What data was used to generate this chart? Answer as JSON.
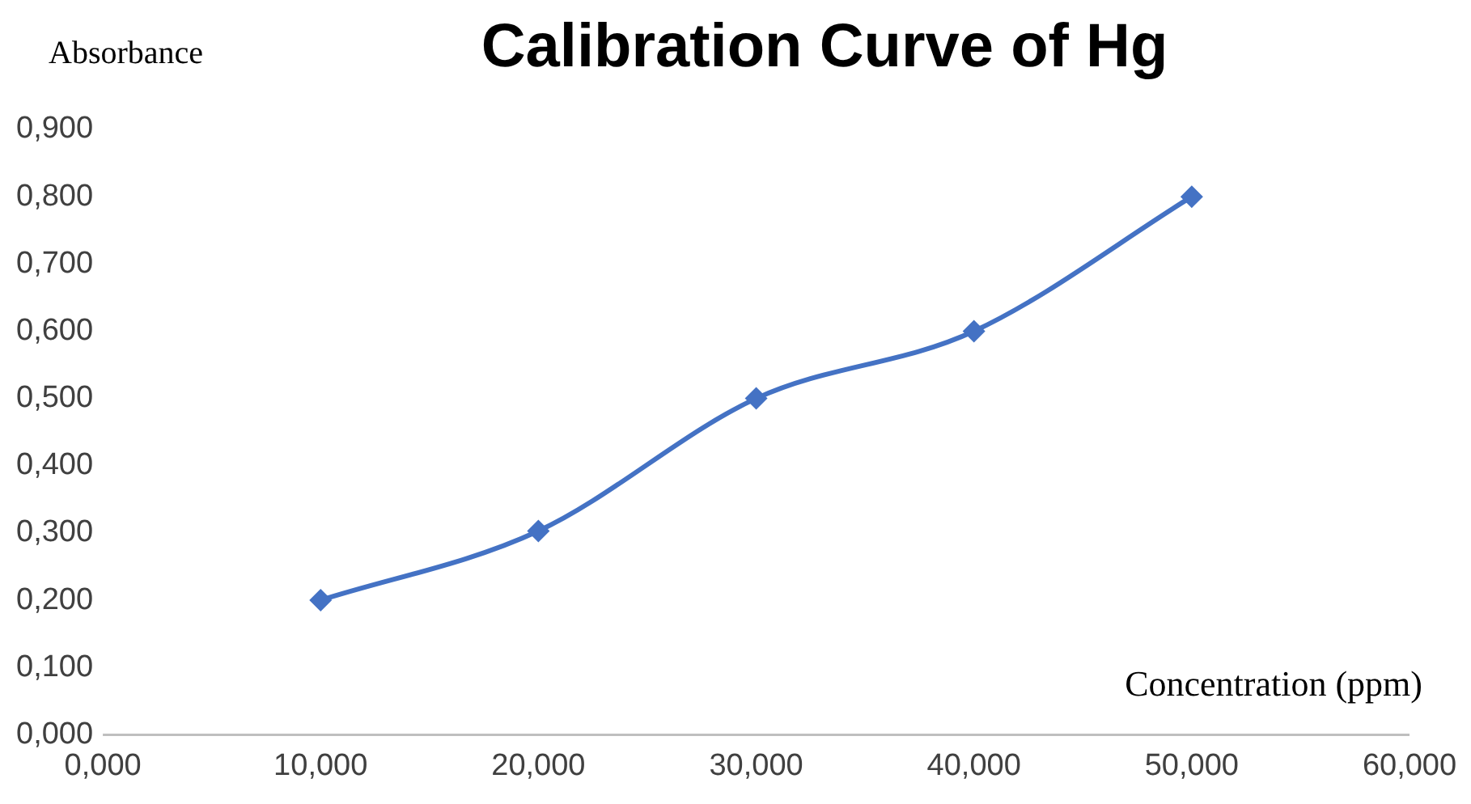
{
  "chart_data": {
    "type": "line",
    "title": "Calibration Curve of Hg",
    "xlabel": "Concentration (ppm)",
    "ylabel": "Absorbance",
    "x": [
      10,
      20,
      30,
      40,
      50
    ],
    "series": [
      {
        "color": "#4472c4",
        "values": [
          0.2,
          0.303,
          0.5,
          0.6,
          0.8
        ]
      }
    ],
    "xlim": [
      0,
      60
    ],
    "xticks": [
      {
        "value": 0,
        "label": "0,000"
      },
      {
        "value": 10,
        "label": "10,000"
      },
      {
        "value": 20,
        "label": "20,000"
      },
      {
        "value": 30,
        "label": "30,000"
      },
      {
        "value": 40,
        "label": "40,000"
      },
      {
        "value": 50,
        "label": "50,000"
      },
      {
        "value": 60,
        "label": "60,000"
      }
    ],
    "ylim": [
      0,
      0.9
    ],
    "yticks": [
      {
        "value": 0,
        "label": "0,000"
      },
      {
        "value": 0.1,
        "label": "0,100"
      },
      {
        "value": 0.2,
        "label": "0,200"
      },
      {
        "value": 0.3,
        "label": "0,300"
      },
      {
        "value": 0.4,
        "label": "0,400"
      },
      {
        "value": 0.5,
        "label": "0,500"
      },
      {
        "value": 0.6,
        "label": "0,600"
      },
      {
        "value": 0.7,
        "label": "0,700"
      },
      {
        "value": 0.8,
        "label": "0,800"
      },
      {
        "value": 0.9,
        "label": "0,900"
      }
    ],
    "grid": false,
    "legend": false,
    "marker": "diamond",
    "line_style": "solid"
  }
}
